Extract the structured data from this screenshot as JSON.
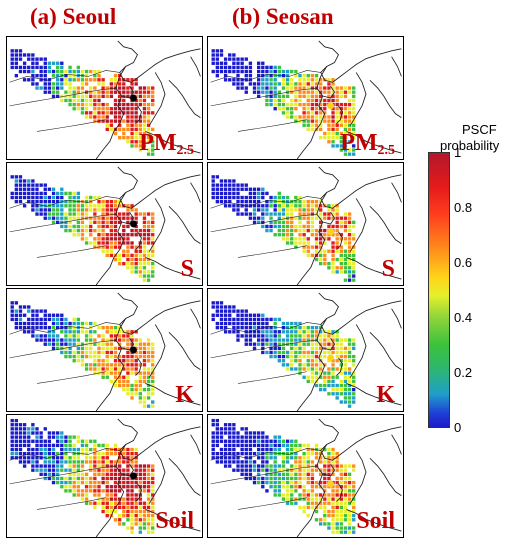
{
  "columns": [
    {
      "title": "(a) Seoul",
      "site": "seoul"
    },
    {
      "title": "(b) Seosan",
      "site": "seosan"
    }
  ],
  "rows": [
    {
      "main": "PM",
      "sub": "2.5"
    },
    {
      "main": "S",
      "sub": ""
    },
    {
      "main": "K",
      "sub": ""
    },
    {
      "main": "Soil",
      "sub": ""
    }
  ],
  "colorbar": {
    "title_line1": "PSCF",
    "title_line2": "probability",
    "ticks": [
      "1",
      "0.8",
      "0.6",
      "0.4",
      "0.2",
      "0"
    ],
    "colors": [
      "#1a1acc",
      "#1f9fc8",
      "#3cc23c",
      "#e6f02a",
      "#ff8c1a",
      "#e31a1c",
      "#b2182b"
    ]
  },
  "receptor_colors": {
    "seoul": "#000000",
    "seosan": "#ffd21a"
  }
}
